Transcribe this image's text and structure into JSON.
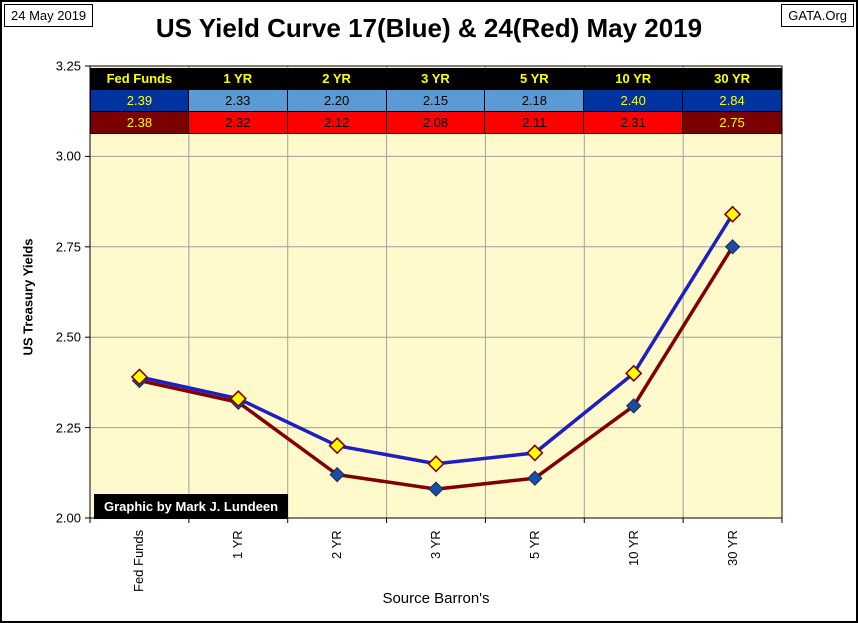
{
  "date_label": "24 May 2019",
  "source_label": "GATA.Org",
  "credit": "Graphic by Mark J. Lundeen",
  "colors": {
    "plot_bg": "#fff9cc",
    "blue_line": "#1f1ec0",
    "red_line": "#800000",
    "blue_marker": "#1a4fa0",
    "yellow_marker": "#ffff00",
    "header_bg": "#000000",
    "header_text": "#ffff00",
    "blue_dark": "#0033a0",
    "blue_light": "#5b9bd5",
    "red_bright": "#ff0000",
    "red_dark": "#7b0000"
  },
  "table": {
    "headers": [
      "Fed Funds",
      "1 YR",
      "2 YR",
      "3 YR",
      "5 YR",
      "10 YR",
      "30 YR"
    ],
    "blue_row": [
      "2.39",
      "2.33",
      "2.20",
      "2.15",
      "2.18",
      "2.40",
      "2.84"
    ],
    "red_row": [
      "2.38",
      "2.32",
      "2.12",
      "2.08",
      "2.11",
      "2.31",
      "2.75"
    ]
  },
  "chart_data": {
    "type": "line",
    "title": "US Yield Curve 17(Blue) & 24(Red) May 2019",
    "xlabel": "Source Barron's",
    "ylabel": "US Treasury Yields",
    "categories": [
      "Fed Funds",
      "1 YR",
      "2 YR",
      "3 YR",
      "5 YR",
      "10 YR",
      "30 YR"
    ],
    "ylim": [
      2.0,
      3.25
    ],
    "yticks": [
      "2.00",
      "2.25",
      "2.50",
      "2.75",
      "3.00",
      "3.25"
    ],
    "grid": true,
    "series": [
      {
        "name": "17 May 2019 (Blue)",
        "values": [
          2.39,
          2.33,
          2.2,
          2.15,
          2.18,
          2.4,
          2.84
        ]
      },
      {
        "name": "24 May 2019 (Red)",
        "values": [
          2.38,
          2.32,
          2.12,
          2.08,
          2.11,
          2.31,
          2.75
        ]
      }
    ]
  }
}
